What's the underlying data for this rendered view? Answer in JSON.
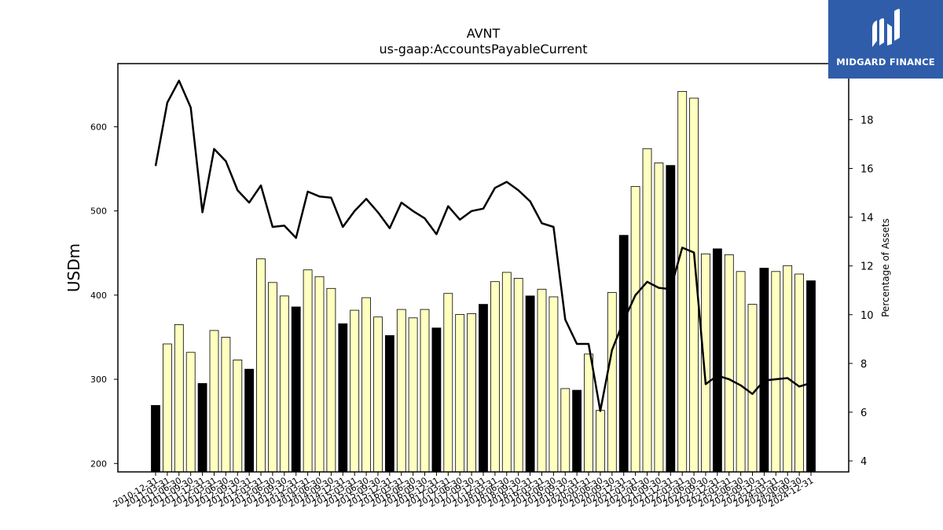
{
  "chart_data": {
    "type": "bar+line",
    "title": "AVNT",
    "subtitle": "us-gaap:AccountsPayableCurrent",
    "ylabel": "USDm",
    "y2label": "Percentage of Assets",
    "ylim": [
      190,
      675
    ],
    "y2lim": [
      3.55,
      20.3
    ],
    "yticks": [
      200,
      300,
      400,
      500,
      600
    ],
    "y2ticks": [
      4,
      6,
      8,
      10,
      12,
      14,
      16,
      18
    ],
    "categories": [
      "2010-12-31",
      "2011-03-31",
      "2011-06-30",
      "2011-09-30",
      "2011-12-31",
      "2012-03-31",
      "2012-06-30",
      "2012-09-30",
      "2012-12-31",
      "2013-03-31",
      "2013-06-30",
      "2013-09-30",
      "2013-12-31",
      "2014-03-31",
      "2014-06-30",
      "2014-09-30",
      "2014-12-31",
      "2015-03-31",
      "2015-06-30",
      "2015-09-30",
      "2015-12-31",
      "2016-03-31",
      "2016-06-30",
      "2016-09-30",
      "2016-12-31",
      "2017-03-31",
      "2017-06-30",
      "2017-09-30",
      "2017-12-31",
      "2018-03-31",
      "2018-06-30",
      "2018-09-30",
      "2018-12-31",
      "2019-03-31",
      "2019-06-30",
      "2019-09-30",
      "2019-12-31",
      "2020-03-31",
      "2020-06-30",
      "2020-09-30",
      "2020-12-31",
      "2021-03-31",
      "2021-06-30",
      "2021-09-30",
      "2021-12-31",
      "2022-03-31",
      "2022-06-30",
      "2022-09-30",
      "2022-12-31",
      "2023-03-31",
      "2023-06-30",
      "2023-09-30",
      "2023-12-31",
      "2024-03-31",
      "2024-06-30",
      "2024-09-30",
      "2024-12-31"
    ],
    "year_end": [
      true,
      false,
      false,
      false,
      true,
      false,
      false,
      false,
      true,
      false,
      false,
      false,
      true,
      false,
      false,
      false,
      true,
      false,
      false,
      false,
      true,
      false,
      false,
      false,
      true,
      false,
      false,
      false,
      true,
      false,
      false,
      false,
      true,
      false,
      false,
      false,
      true,
      false,
      false,
      false,
      true,
      false,
      false,
      false,
      true,
      false,
      false,
      false,
      true,
      false,
      false,
      false,
      true,
      false,
      false,
      false,
      true
    ],
    "series": [
      {
        "values": [
          269,
          342,
          365,
          332,
          295,
          358,
          350,
          323,
          312,
          443,
          415,
          399,
          386,
          430,
          422,
          408,
          366,
          382,
          397,
          374,
          352,
          383,
          373,
          383,
          361,
          402,
          377,
          378,
          389,
          416,
          427,
          420,
          399,
          407,
          398,
          289,
          287,
          330,
          263,
          403,
          471,
          529,
          574,
          557,
          554,
          642,
          634,
          449,
          455,
          448,
          428,
          389,
          432,
          428,
          435,
          425,
          417
        ]
      },
      {
        "values": [
          16.1,
          18.7,
          19.6,
          18.5,
          14.2,
          16.8,
          16.3,
          15.1,
          14.6,
          15.3,
          13.6,
          13.65,
          13.15,
          15.05,
          14.85,
          14.8,
          13.6,
          14.25,
          14.75,
          14.2,
          13.55,
          14.6,
          14.25,
          13.95,
          13.3,
          14.45,
          13.9,
          14.25,
          14.35,
          15.2,
          15.45,
          15.1,
          14.65,
          13.75,
          13.6,
          9.8,
          8.8,
          8.8,
          6.05,
          8.55,
          9.75,
          10.8,
          11.35,
          11.1,
          11.05,
          12.75,
          12.55,
          7.15,
          7.5,
          7.35,
          7.1,
          6.75,
          7.3,
          7.35,
          7.4,
          7.05,
          7.2
        ]
      }
    ],
    "colors": {
      "bar_year_end": "#000000",
      "bar_quarter": "#ffffc0",
      "bar_edge": "#000000",
      "line": "#000000"
    },
    "grid": false
  },
  "logo": {
    "text": "MIDGARD FINANCE",
    "bg": "#2f5daa"
  }
}
